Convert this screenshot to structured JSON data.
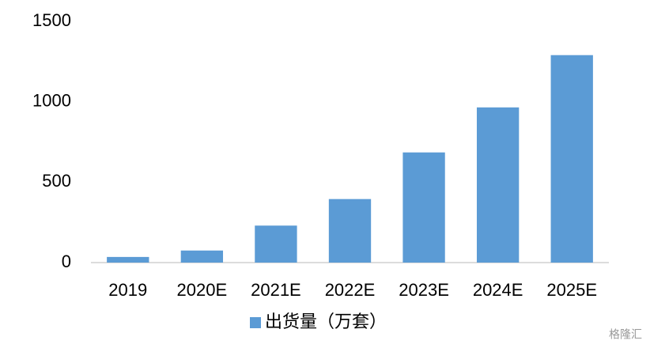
{
  "chart_data": {
    "type": "bar",
    "categories": [
      "2019",
      "2020E",
      "2021E",
      "2022E",
      "2023E",
      "2024E",
      "2025E"
    ],
    "series": [
      {
        "name": "出货量（万套）",
        "color": "#5b9bd5",
        "values": [
          35,
          75,
          230,
          395,
          685,
          965,
          1290
        ]
      }
    ],
    "ylim": [
      0,
      1500
    ],
    "yticks": [
      0,
      500,
      1000,
      1500
    ],
    "grid": false,
    "legend": "bottom",
    "watermark": "格隆汇"
  }
}
